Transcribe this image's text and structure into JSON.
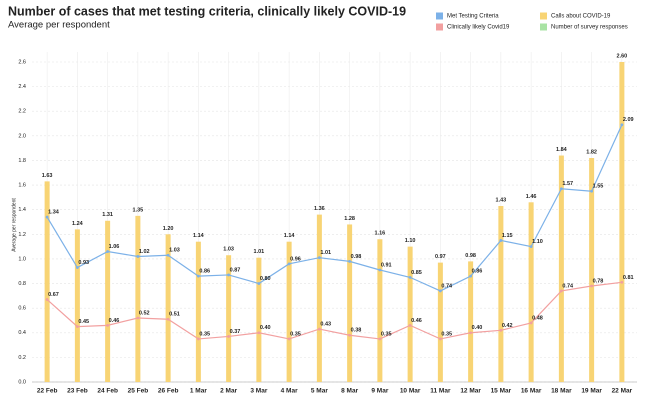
{
  "chart_data": {
    "type": "bar",
    "title": "Number of cases that met testing criteria, clinically likely COVID-19",
    "subtitle": "Average per respondent",
    "y_label": "Average per respondent",
    "categories": [
      "22 Feb",
      "23 Feb",
      "24 Feb",
      "25 Feb",
      "26 Feb",
      "1 Mar",
      "2 Mar",
      "3 Mar",
      "4 Mar",
      "5 Mar",
      "8 Mar",
      "9 Mar",
      "10 Mar",
      "11 Mar",
      "12 Mar",
      "15 Mar",
      "16 Mar",
      "18 Mar",
      "19 Mar",
      "22 Mar"
    ],
    "series": [
      {
        "name": "Met Testing Criteria",
        "type": "line",
        "color": "#7cb1e8",
        "values": [
          1.34,
          0.93,
          1.06,
          1.02,
          1.03,
          0.86,
          0.87,
          0.8,
          0.96,
          1.01,
          0.98,
          0.91,
          0.85,
          0.74,
          0.86,
          1.15,
          1.1,
          1.57,
          1.55,
          2.09
        ],
        "value_labels": [
          "1.34",
          "0.93",
          "1.06",
          "1.02",
          "1.03",
          "0.86",
          "0.87",
          "0.80",
          "0.96",
          "1.01",
          "0.98",
          "0.91",
          "0.85",
          "0.74",
          "0.86",
          "1.15",
          "1.10",
          "1.57",
          "1.55",
          "2.09"
        ]
      },
      {
        "name": "Calls about COVID-19",
        "type": "bar",
        "color": "#f8d474",
        "values": [
          1.63,
          1.24,
          1.31,
          1.35,
          1.2,
          1.14,
          1.03,
          1.01,
          1.14,
          1.36,
          1.28,
          1.16,
          1.1,
          0.97,
          0.98,
          1.43,
          1.46,
          1.84,
          1.82,
          2.6
        ],
        "value_labels": [
          "1.63",
          "1.24",
          "1.31",
          "1.35",
          "1.20",
          "1.14",
          "1.03",
          "1.01",
          "1.14",
          "1.36",
          "1.28",
          "1.16",
          "1.10",
          "0.97",
          "0.98",
          "1.43",
          "1.46",
          "1.84",
          "1.82",
          "2.60"
        ]
      },
      {
        "name": "Clinically likely Covid19",
        "type": "line",
        "color": "#f2a0a0",
        "values": [
          0.67,
          0.45,
          0.46,
          0.52,
          0.51,
          0.35,
          0.37,
          0.4,
          0.35,
          0.43,
          0.38,
          0.35,
          0.46,
          0.35,
          0.4,
          0.42,
          0.48,
          0.74,
          0.78,
          0.81
        ],
        "value_labels": [
          "0.67",
          "0.45",
          "0.46",
          "0.52",
          "0.51",
          "0.35",
          "0.37",
          "0.40",
          "0.35",
          "0.43",
          "0.38",
          "0.35",
          "0.46",
          "0.35",
          "0.40",
          "0.42",
          "0.48",
          "0.74",
          "0.78",
          "0.81"
        ]
      },
      {
        "name": "Number of survey responses",
        "type": "line",
        "color": "#a9e3a4",
        "values": [
          null,
          null,
          null,
          null,
          null,
          null,
          null,
          null,
          null,
          null,
          null,
          null,
          null,
          null,
          null,
          null,
          null,
          null,
          null,
          null
        ]
      }
    ],
    "ylim": [
      0,
      2.6
    ],
    "yticks": [
      {
        "value": 0,
        "label": "0.0"
      },
      0.2,
      0.4,
      0.6,
      0.8,
      {
        "value": 1,
        "label": "1.0"
      },
      1.2,
      1.4,
      1.6,
      1.8,
      {
        "value": 2,
        "label": "2.0"
      },
      2.2,
      2.4,
      2.6
    ],
    "grid": true
  }
}
